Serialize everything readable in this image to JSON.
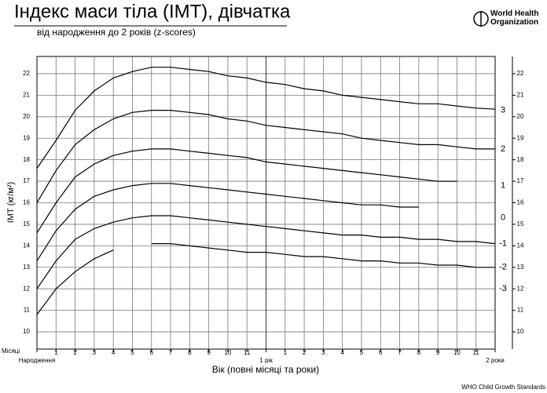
{
  "chart_data": {
    "type": "line",
    "title": "Індекс маси тіла (ІМТ), дівчатка",
    "subtitle": "від народження до 2 років (z-scores)",
    "organization": "World Health Organization",
    "footer": "WHO Child Growth Standards",
    "x_unit_label": "Місяці",
    "xlabel": "Вік (повні місяці та роки)",
    "ylabel": "ІМТ (кг/м²)",
    "x": [
      0,
      1,
      2,
      3,
      4,
      5,
      6,
      7,
      8,
      9,
      10,
      11,
      12,
      13,
      14,
      15,
      16,
      17,
      18,
      19,
      20,
      21,
      22,
      23,
      24
    ],
    "xlim": [
      0,
      24
    ],
    "xticks": [
      {
        "value": 0,
        "label": "Народження"
      },
      1,
      2,
      3,
      4,
      5,
      6,
      7,
      8,
      9,
      10,
      11,
      {
        "value": 12,
        "label": "1 рік"
      },
      {
        "value": 13,
        "label": "1"
      },
      {
        "value": 14,
        "label": "2"
      },
      {
        "value": 15,
        "label": "3"
      },
      {
        "value": 16,
        "label": "4"
      },
      {
        "value": 17,
        "label": "5"
      },
      {
        "value": 18,
        "label": "6"
      },
      {
        "value": 19,
        "label": "7"
      },
      {
        "value": 20,
        "label": "8"
      },
      {
        "value": 21,
        "label": "9"
      },
      {
        "value": 22,
        "label": "10"
      },
      {
        "value": 23,
        "label": "11"
      },
      {
        "value": 24,
        "label": "2 роки"
      }
    ],
    "ylim": [
      9.2,
      22.8
    ],
    "yticks": [
      10,
      11,
      12,
      13,
      14,
      15,
      16,
      17,
      18,
      19,
      20,
      21,
      22
    ],
    "grid": true,
    "series": [
      {
        "name": "3",
        "color": "#000000",
        "values": [
          17.6,
          18.9,
          20.3,
          21.2,
          21.8,
          22.1,
          22.3,
          22.3,
          22.2,
          22.1,
          21.9,
          21.8,
          21.6,
          21.5,
          21.3,
          21.2,
          21.0,
          20.9,
          20.8,
          20.7,
          20.6,
          20.6,
          20.5,
          20.4,
          20.35
        ]
      },
      {
        "name": "2",
        "color": "#000000",
        "values": [
          16.0,
          17.5,
          18.7,
          19.4,
          19.9,
          20.2,
          20.3,
          20.3,
          20.2,
          20.1,
          19.9,
          19.8,
          19.6,
          19.5,
          19.4,
          19.3,
          19.2,
          19.0,
          18.9,
          18.8,
          18.7,
          18.7,
          18.6,
          18.5,
          18.5
        ]
      },
      {
        "name": "1",
        "color": "#000000",
        "values": [
          14.6,
          16.0,
          17.2,
          17.8,
          18.2,
          18.4,
          18.5,
          18.5,
          18.4,
          18.3,
          18.2,
          18.1,
          17.9,
          17.8,
          17.7,
          17.6,
          17.5,
          17.4,
          17.3,
          17.2,
          17.1,
          17.0,
          17.0,
          null,
          null
        ]
      },
      {
        "name": "0",
        "color": "#000000",
        "values": [
          13.3,
          14.7,
          15.7,
          16.3,
          16.6,
          16.8,
          16.9,
          16.9,
          16.8,
          16.7,
          16.6,
          16.5,
          16.4,
          16.3,
          16.2,
          16.1,
          16.0,
          15.9,
          15.9,
          15.8,
          15.8,
          null,
          null,
          null,
          null
        ]
      },
      {
        "name": "-1",
        "color": "#000000",
        "values": [
          12.0,
          13.3,
          14.3,
          14.8,
          15.1,
          15.3,
          15.4,
          15.4,
          15.3,
          15.2,
          15.1,
          15.0,
          14.9,
          14.8,
          14.7,
          14.6,
          14.5,
          14.5,
          14.4,
          14.4,
          14.3,
          14.3,
          14.2,
          14.2,
          14.1
        ]
      },
      {
        "name": "-2",
        "color": "#000000",
        "values": [
          10.8,
          12.0,
          12.8,
          13.4,
          13.8,
          null,
          14.1,
          14.1,
          14.0,
          13.9,
          13.8,
          13.7,
          13.7,
          13.6,
          13.5,
          13.5,
          13.4,
          13.3,
          13.3,
          13.2,
          13.2,
          13.1,
          13.1,
          13.0,
          13.0
        ]
      }
    ],
    "annotations": [
      {
        "text": "3",
        "y": 20.3
      },
      {
        "text": "2",
        "y": 18.5
      },
      {
        "text": "1",
        "y": 16.8
      },
      {
        "text": "0",
        "y": 15.3
      },
      {
        "text": "-1",
        "y": 14.1
      },
      {
        "text": "-2",
        "y": 13.0
      },
      {
        "text": "-3",
        "y": 12.0
      }
    ]
  }
}
